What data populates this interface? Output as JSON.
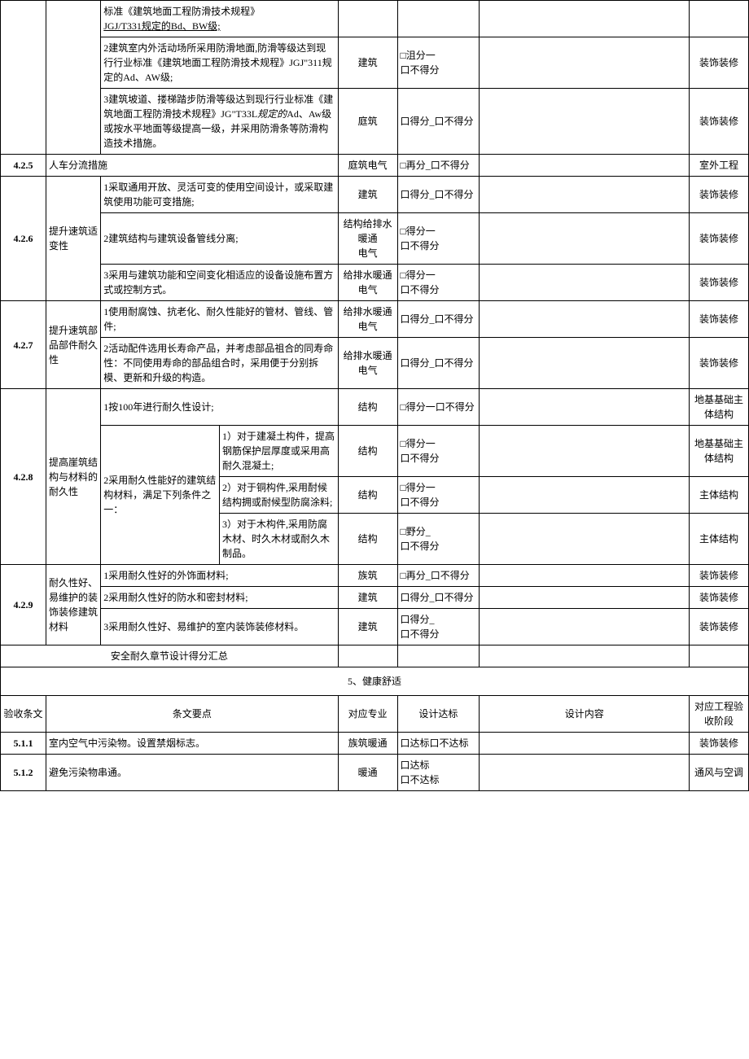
{
  "colors": {
    "border": "#000000",
    "text": "#000000",
    "bg": "#ffffff"
  },
  "rows": [
    {
      "req": "标准《建筑地面工程防滑技术规程》",
      "req2_underlined": "JGJ/T331规定的Bd、BW级;"
    },
    {
      "req": "2建筑室内外活动场所采用防滑地面,防滑等级达到现行行业标准《建筑地面工程防滑技术规程》JGJ\"311规定的Ad、AW级;",
      "prof": "建筑",
      "score": "□沮分一\n口不得分",
      "phase": "装饰装修"
    },
    {
      "req": "3建筑坡道、搂梯踏步防滑等级达到现行行业标准《建筑地面工程防滑技术规程》JG\"T33L规定的Ad、Aw级或按水平地面等级提高一级，并采用防滑条等防滑构造技术措施。",
      "req_italic": "规定的",
      "prof": "庭筑",
      "score": "口得分_口不得分",
      "phase": "装饰装修"
    },
    {
      "code": "4.2.5",
      "cat": "人车分流措施",
      "prof": "庭筑电气",
      "score": "□再分_口不得分",
      "phase": "室外工程"
    },
    {
      "code": "4.2.6",
      "cat": "提升速筑适变性",
      "sub": [
        {
          "req": "1采取通用开放、灵活可变的使用空间设计，或采取建筑使用功能可变措施;",
          "prof": "建筑",
          "score": "口得分_口不得分",
          "phase": "装饰装修"
        },
        {
          "req": "2建筑结构与建筑设备管线分离;",
          "prof": "结构给排水暖通\n电气",
          "score": "□得分一\n口不得分",
          "phase": "装饰装修"
        },
        {
          "req": "3采用与建筑功能和空间变化相适应的设备设施布置方式或控制方式。",
          "prof": "给排水暖通电气",
          "score": "□得分一\n口不得分",
          "phase": "装饰装修"
        }
      ]
    },
    {
      "code": "4.2.7",
      "cat": "提升速筑部品部件耐久性",
      "sub": [
        {
          "req": "1使用耐腐蚀、抗老化、耐久性能好的管材、管线、管件;",
          "prof": "给排水暖通电气",
          "score": "口得分_口不得分",
          "phase": "装饰装修"
        },
        {
          "req": "2活动配件选用长寿命产品，并考虑部品祖合的同寿命性：不同使用寿命的部品组合时，采用便于分别拆模、更新和升级的构造。",
          "prof": "给排水暖通电气",
          "score": "口得分_口不得分",
          "phase": "装饰装修"
        }
      ]
    },
    {
      "code": "4.2.8",
      "cat": "提高崖筑结构与材料的耐久性",
      "sub": [
        {
          "req": "1按100年进行耐久性设计;",
          "prof": "结构",
          "score": "□得分一口不得分",
          "phase": "地基基础主体结构"
        },
        {
          "req_main": "2采用耐久性能好的建筑结构材料，满足下列条件之一：",
          "subsub": [
            {
              "req": "1）对于建凝土构件，提高钢筋保护层厚度或采用高耐久混凝土;",
              "prof": "结构",
              "score": "□得分一\n口不得分",
              "phase": "地基基础主体结构"
            },
            {
              "req": "2）对于铜构件,采用酎候结构拥或耐候型防腐涂料;",
              "prof": "结构",
              "score": "□得分一\n口不得分",
              "phase": "主体结构"
            },
            {
              "req": "3）对于木构件,采用防腐木材、时久木材或耐久木制品。",
              "prof": "结构",
              "score": "□野分_\n口不得分",
              "phase": "主体结构"
            }
          ]
        }
      ]
    },
    {
      "code": "4.2.9",
      "cat": "耐久性好、易维护的装饰装修建筑材料",
      "sub": [
        {
          "req": "1采用耐久性好的外饰面材料;",
          "prof": "族筑",
          "score": "□再分_口不得分",
          "phase": "装饰装修"
        },
        {
          "req": "2采用耐久性好的防水和密封材料;",
          "prof": "建筑",
          "score": "口得分_口不得分",
          "phase": "装饰装修"
        },
        {
          "req": "3采用耐久性好、易维护的室内装饰装修材料。",
          "prof": "建筑",
          "score": "口得分_\n口不得分",
          "phase": "装饰装修"
        }
      ]
    }
  ],
  "summary_row": "安全耐久章节设计得分汇总",
  "section5": {
    "title": "5、健康舒适",
    "headers": {
      "code": "验收条文",
      "req": "条文要点",
      "prof": "对应专业",
      "score": "设计达标",
      "content": "设计内容",
      "phase": "对应工程验收阶段"
    },
    "rows": [
      {
        "code": "5.1.1",
        "req": "室内空气中污染物。设置禁烟标志。",
        "prof": "族筑暖通",
        "score": "口达标口不达标",
        "phase": "装饰装修"
      },
      {
        "code": "5.1.2",
        "req": "避免污染物串通。",
        "prof": "暖通",
        "score": "口达标\n口不达标",
        "phase": "通风与空调"
      }
    ]
  }
}
